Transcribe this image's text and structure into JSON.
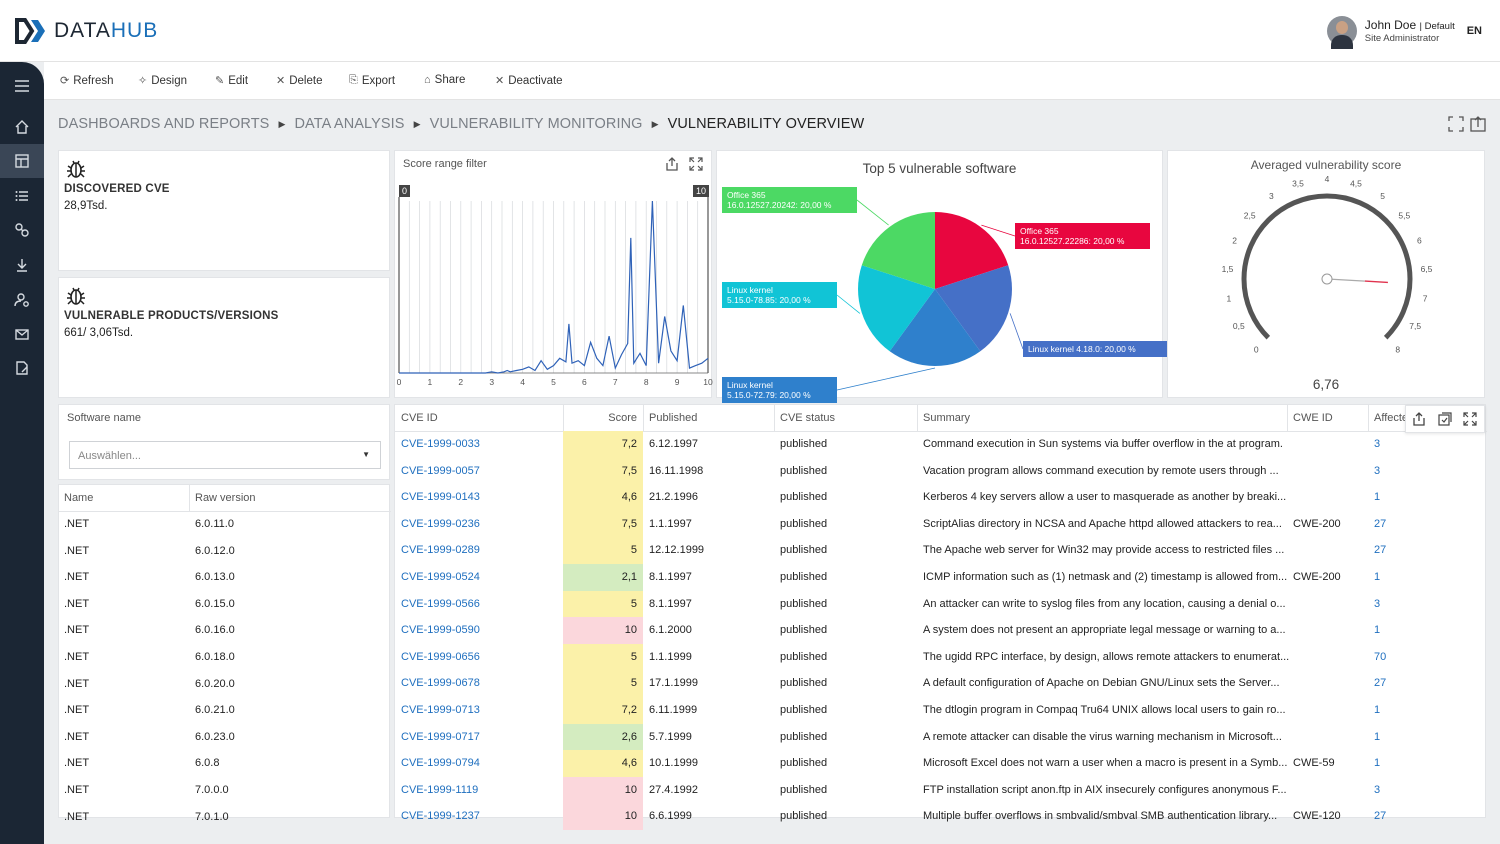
{
  "app": {
    "logo_text_a": "DATA",
    "logo_text_b": "HUB"
  },
  "user": {
    "name": "John Doe",
    "tenant": "| Default",
    "role": "Site Administrator",
    "lang": "EN"
  },
  "sidebar": {
    "items": [
      "menu-icon",
      "home-icon",
      "dashboard-icon",
      "list-icon",
      "relations-icon",
      "download-icon",
      "user-settings-icon",
      "mail-icon",
      "document-edit-icon"
    ]
  },
  "toolbar": {
    "refresh": "Refresh",
    "design": "Design",
    "edit": "Edit",
    "delete": "Delete",
    "export": "Export",
    "share": "Share",
    "deactivate": "Deactivate"
  },
  "breadcrumb": {
    "b1": "DASHBOARDS AND REPORTS",
    "b2": "DATA ANALYSIS",
    "b3": "VULNERABILITY MONITORING",
    "b4": "VULNERABILITY OVERVIEW"
  },
  "kpi1": {
    "title": "DISCOVERED CVE",
    "value": "28,9Tsd."
  },
  "kpi2": {
    "title": "VULNERABLE PRODUCTS/VERSIONS",
    "value": "661/ 3,06Tsd."
  },
  "range_filter": {
    "title": "Score range filter",
    "min_label": "0",
    "max_label": "10"
  },
  "pie": {
    "title": "Top 5 vulnerable software"
  },
  "gauge": {
    "title": "Averaged vulnerability score",
    "value": "6,76",
    "ticks": [
      "0",
      "0,5",
      "1",
      "1,5",
      "2",
      "2,5",
      "3",
      "3,5",
      "4",
      "4,5",
      "5",
      "5,5",
      "6",
      "6,5",
      "7",
      "7,5",
      "8"
    ]
  },
  "software_filter": {
    "label": "Software name",
    "placeholder": "Auswählen..."
  },
  "versions": {
    "headers": [
      "Name",
      "Raw version"
    ],
    "rows": [
      [
        ".NET",
        "6.0.11.0"
      ],
      [
        ".NET",
        "6.0.12.0"
      ],
      [
        ".NET",
        "6.0.13.0"
      ],
      [
        ".NET",
        "6.0.15.0"
      ],
      [
        ".NET",
        "6.0.16.0"
      ],
      [
        ".NET",
        "6.0.18.0"
      ],
      [
        ".NET",
        "6.0.20.0"
      ],
      [
        ".NET",
        "6.0.21.0"
      ],
      [
        ".NET",
        "6.0.23.0"
      ],
      [
        ".NET",
        "6.0.8"
      ],
      [
        ".NET",
        "7.0.0.0"
      ],
      [
        ".NET",
        "7.0.1.0"
      ]
    ]
  },
  "cve_table": {
    "headers": [
      "CVE ID",
      "Score",
      "Published",
      "CVE status",
      "Summary",
      "CWE ID",
      "Affecte"
    ],
    "rows": [
      [
        "CVE-1999-0033",
        "7,2",
        "6.12.1997",
        "published",
        "Command execution in Sun systems via buffer overflow in the at program.",
        "",
        "3"
      ],
      [
        "CVE-1999-0057",
        "7,5",
        "16.11.1998",
        "published",
        "Vacation program allows command execution by remote users through ...",
        "",
        "3"
      ],
      [
        "CVE-1999-0143",
        "4,6",
        "21.2.1996",
        "published",
        "Kerberos 4 key servers allow a user to masquerade as another by breaki...",
        "",
        "1"
      ],
      [
        "CVE-1999-0236",
        "7,5",
        "1.1.1997",
        "published",
        "ScriptAlias directory in NCSA and Apache httpd allowed attackers to rea...",
        "CWE-200",
        "27"
      ],
      [
        "CVE-1999-0289",
        "5",
        "12.12.1999",
        "published",
        "The Apache web server for Win32 may provide access to restricted files ...",
        "",
        "27"
      ],
      [
        "CVE-1999-0524",
        "2,1",
        "8.1.1997",
        "published",
        "ICMP information such as (1) netmask and (2) timestamp is allowed from...",
        "CWE-200",
        "1"
      ],
      [
        "CVE-1999-0566",
        "5",
        "8.1.1997",
        "published",
        "An attacker can write to syslog files from any location, causing a denial o...",
        "",
        "3"
      ],
      [
        "CVE-1999-0590",
        "10",
        "6.1.2000",
        "published",
        "A system does not present an appropriate legal message or warning to a...",
        "",
        "1"
      ],
      [
        "CVE-1999-0656",
        "5",
        "1.1.1999",
        "published",
        "The ugidd RPC interface, by design, allows remote attackers to enumerat...",
        "",
        "70"
      ],
      [
        "CVE-1999-0678",
        "5",
        "17.1.1999",
        "published",
        "A default configuration of Apache on Debian GNU/Linux sets the Server...",
        "",
        "27"
      ],
      [
        "CVE-1999-0713",
        "7,2",
        "6.11.1999",
        "published",
        "The dtlogin program in Compaq Tru64 UNIX allows local users to gain ro...",
        "",
        "1"
      ],
      [
        "CVE-1999-0717",
        "2,6",
        "5.7.1999",
        "published",
        "A remote attacker can disable the virus warning mechanism in Microsoft...",
        "",
        "1"
      ],
      [
        "CVE-1999-0794",
        "4,6",
        "10.1.1999",
        "published",
        "Microsoft Excel does not warn a user when a macro is present in a Symb...",
        "CWE-59",
        "1"
      ],
      [
        "CVE-1999-1119",
        "10",
        "27.4.1992",
        "published",
        "FTP installation script anon.ftp in AIX insecurely configures anonymous F...",
        "",
        "3"
      ],
      [
        "CVE-1999-1237",
        "10",
        "6.6.1999",
        "published",
        "Multiple buffer overflows in smbvalid/smbval SMB authentication library...",
        "CWE-120",
        "27"
      ]
    ]
  },
  "colors": {
    "low": "#d4ecc0",
    "medium": "#fbf1a9",
    "high": "#fbd7dc",
    "link": "#1f6fbf",
    "sidebar": "#1b2634"
  },
  "chart_data": [
    {
      "type": "line",
      "title": "Score range filter",
      "x": [
        0,
        0.2,
        0.4,
        0.6,
        0.8,
        1,
        1.2,
        1.4,
        1.6,
        1.8,
        2,
        2.2,
        2.4,
        2.6,
        2.8,
        3,
        3.2,
        3.4,
        3.5,
        3.6,
        3.8,
        4,
        4.2,
        4.4,
        4.6,
        4.8,
        5,
        5.2,
        5.4,
        5.5,
        5.6,
        5.8,
        6,
        6.2,
        6.4,
        6.6,
        6.8,
        7,
        7.2,
        7.4,
        7.5,
        7.6,
        7.8,
        8,
        8.2,
        8.4,
        8.6,
        8.8,
        9,
        9.2,
        9.4,
        9.6,
        9.8,
        10
      ],
      "y": [
        0,
        0,
        0,
        0,
        0,
        0,
        0,
        0,
        0,
        0,
        0,
        0,
        0,
        0,
        0,
        1,
        0,
        1,
        2,
        1,
        2,
        3,
        5,
        2,
        10,
        3,
        6,
        12,
        9,
        40,
        8,
        10,
        6,
        25,
        12,
        6,
        30,
        4,
        15,
        24,
        110,
        8,
        16,
        6,
        140,
        8,
        46,
        18,
        10,
        55,
        4,
        6,
        8,
        12
      ],
      "xlim": [
        0,
        10
      ],
      "xticks": [
        "0",
        "1",
        "2",
        "3",
        "4",
        "5",
        "6",
        "7",
        "8",
        "9",
        "10"
      ],
      "color": "#2f62b8"
    },
    {
      "type": "pie",
      "title": "Top 5 vulnerable software",
      "slices": [
        {
          "label": "Office 365 16.0.12527.22286: 20,00 %",
          "value": 20,
          "color": "#e8063f"
        },
        {
          "label": "Linux kernel 4.18.0: 20,00 %",
          "value": 20,
          "color": "#4570c7"
        },
        {
          "label": "Linux kernel 5.15.0-72.79: 20,00 %",
          "value": 20,
          "color": "#2f80cc"
        },
        {
          "label": "Linux kernel 5.15.0-78.85: 20,00 %",
          "value": 20,
          "color": "#11c4d6"
        },
        {
          "label": "Office 365 16.0.12527.20242: 20,00 %",
          "value": 20,
          "color": "#4cd964"
        }
      ]
    },
    {
      "type": "gauge",
      "title": "Averaged vulnerability score",
      "min": 0,
      "max": 8,
      "value": 6.76
    }
  ]
}
